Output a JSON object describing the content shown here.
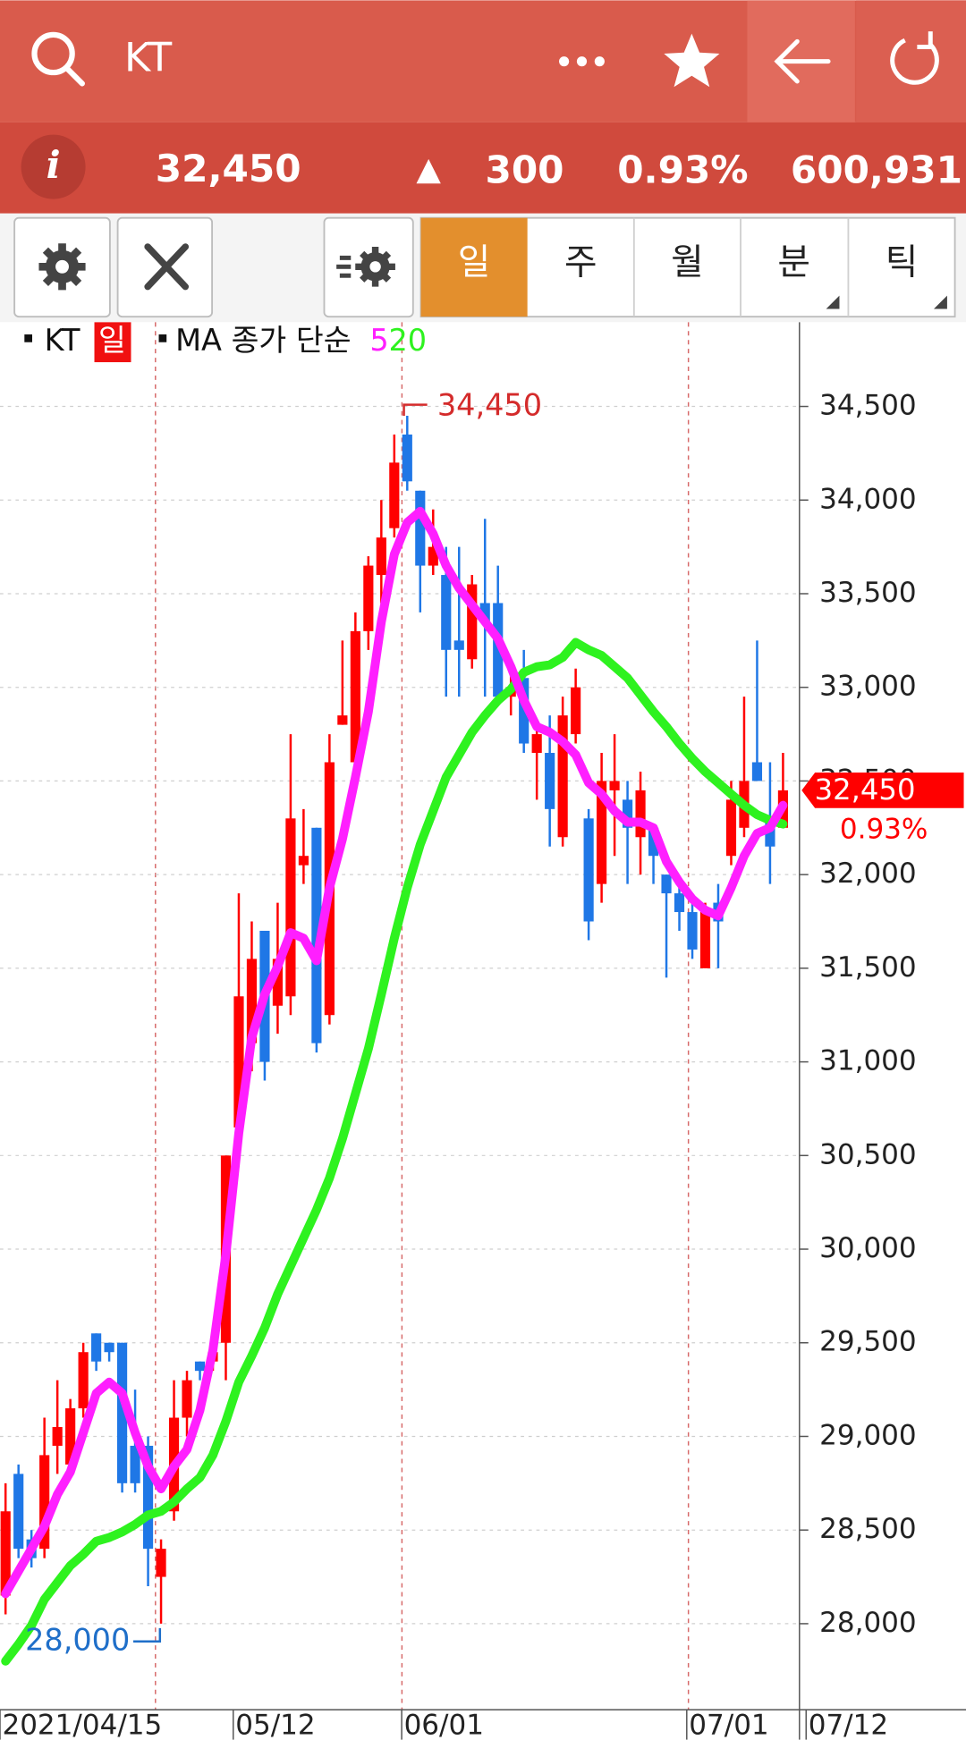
{
  "app_bar": {
    "title": "KT"
  },
  "quote": {
    "info": "i",
    "price": "32,450",
    "change": "300",
    "change_rate": "0.93%",
    "volume": "600,931"
  },
  "tabs": [
    "일",
    "주",
    "월",
    "분",
    "틱"
  ],
  "chart_data": {
    "type": "candlestick",
    "period": "일",
    "ma_label": "MA 종가 단순",
    "categories": [
      "2021/04/15",
      null,
      null,
      null,
      null,
      null,
      null,
      null,
      null,
      null,
      null,
      null,
      null,
      null,
      null,
      null,
      null,
      null,
      "05/12",
      null,
      null,
      null,
      null,
      null,
      null,
      null,
      null,
      null,
      null,
      null,
      null,
      "06/01",
      null,
      null,
      null,
      null,
      null,
      null,
      null,
      null,
      null,
      null,
      null,
      null,
      null,
      null,
      null,
      null,
      null,
      null,
      null,
      null,
      null,
      "07/01",
      null,
      null,
      null,
      null,
      null,
      null,
      "07/12"
    ],
    "series": [
      {
        "name": "KT",
        "up_color": "#ff0000",
        "down_color": "#1f77e6",
        "open": [
          28150,
          28800,
          28450,
          28400,
          28950,
          28850,
          29150,
          29550,
          29500,
          29500,
          28950,
          28950,
          28250,
          28600,
          29100,
          29400,
          29400,
          29500,
          30650,
          31100,
          31700,
          31300,
          31350,
          32050,
          32250,
          31250,
          32800,
          32600,
          33300,
          33600,
          33850,
          34350,
          34050,
          33650,
          33600,
          33250,
          33150,
          33450,
          33450,
          32950,
          33050,
          32650,
          32650,
          32200,
          32750,
          32300,
          31950,
          32450,
          32400,
          32200,
          32250,
          32000,
          31900,
          31800,
          31500,
          31850,
          32100,
          32250,
          32600,
          32300,
          32250
        ],
        "high": [
          28750,
          28850,
          28500,
          29100,
          29300,
          29200,
          29500,
          29550,
          29500,
          29500,
          29250,
          29000,
          28450,
          29300,
          29350,
          29400,
          29550,
          30500,
          31900,
          31750,
          31700,
          31850,
          32750,
          32350,
          32250,
          32750,
          33250,
          33400,
          33700,
          34000,
          34350,
          34450,
          34050,
          33950,
          33750,
          33750,
          33600,
          33900,
          33650,
          33150,
          33200,
          32800,
          32850,
          32950,
          33100,
          32350,
          32650,
          32750,
          32500,
          32550,
          32250,
          32000,
          31950,
          31850,
          31850,
          31950,
          32500,
          32950,
          33250,
          32600,
          32650
        ],
        "low": [
          28050,
          28350,
          28300,
          28350,
          28800,
          28800,
          29100,
          29350,
          29400,
          28700,
          28700,
          28200,
          28000,
          28550,
          29000,
          29300,
          29350,
          29300,
          30500,
          30950,
          30900,
          31150,
          31250,
          31950,
          31050,
          31200,
          32800,
          32600,
          33200,
          33450,
          33800,
          34050,
          33400,
          33600,
          32950,
          32950,
          33100,
          32950,
          32950,
          32850,
          32650,
          32400,
          32150,
          32150,
          32700,
          31650,
          31850,
          32100,
          31950,
          32000,
          31950,
          31450,
          31700,
          31550,
          31500,
          31500,
          32050,
          32200,
          32500,
          31950,
          32250
        ],
        "close": [
          28600,
          28400,
          28350,
          28900,
          29050,
          29150,
          29450,
          29400,
          29450,
          28750,
          28750,
          28400,
          28400,
          29100,
          29300,
          29350,
          29450,
          30500,
          31350,
          31550,
          31000,
          31550,
          32300,
          32100,
          31100,
          32600,
          32850,
          33300,
          33650,
          33800,
          34200,
          34100,
          33650,
          33750,
          33200,
          33200,
          33550,
          33350,
          32950,
          33000,
          32700,
          32750,
          32350,
          32850,
          33000,
          31750,
          32500,
          32500,
          32250,
          32450,
          32100,
          31900,
          31800,
          31600,
          31800,
          31750,
          32400,
          32500,
          32500,
          32150,
          32450
        ]
      },
      {
        "name": "5",
        "color": "#ff1fff",
        "values": [
          28160,
          28280,
          28400,
          28520,
          28690,
          28810,
          29020,
          29230,
          29290,
          29230,
          29020,
          28840,
          28720,
          28840,
          28930,
          29140,
          29460,
          29970,
          30620,
          31130,
          31360,
          31510,
          31690,
          31660,
          31540,
          31930,
          32190,
          32520,
          32870,
          33350,
          33710,
          33880,
          33940,
          33820,
          33650,
          33530,
          33440,
          33350,
          33260,
          33110,
          32930,
          32790,
          32760,
          32710,
          32640,
          32490,
          32430,
          32340,
          32280,
          32280,
          32250,
          32070,
          31960,
          31870,
          31810,
          31780,
          31930,
          32100,
          32220,
          32250,
          32370
        ]
      },
      {
        "name": "20",
        "color": "#2ef21f",
        "values": [
          27800,
          27890,
          27990,
          28130,
          28220,
          28310,
          28370,
          28440,
          28460,
          28490,
          28530,
          28580,
          28600,
          28650,
          28720,
          28780,
          28900,
          29080,
          29290,
          29430,
          29580,
          29760,
          29910,
          30060,
          30210,
          30380,
          30590,
          30830,
          31070,
          31360,
          31660,
          31930,
          32160,
          32340,
          32520,
          32640,
          32760,
          32850,
          32930,
          32990,
          33080,
          33110,
          33120,
          33160,
          33240,
          33200,
          33170,
          33110,
          33050,
          32960,
          32870,
          32790,
          32700,
          32620,
          32550,
          32490,
          32430,
          32370,
          32320,
          32290,
          32270
        ]
      }
    ],
    "ylim": [
      27600,
      34920
    ],
    "yticks": [
      {
        "value": 28000,
        "label": "28,000"
      },
      {
        "value": 28500,
        "label": "28,500"
      },
      {
        "value": 29000,
        "label": "29,000"
      },
      {
        "value": 29500,
        "label": "29,500"
      },
      {
        "value": 30000,
        "label": "30,000"
      },
      {
        "value": 30500,
        "label": "30,500"
      },
      {
        "value": 31000,
        "label": "31,000"
      },
      {
        "value": 31500,
        "label": "31,500"
      },
      {
        "value": 32000,
        "label": "32,000"
      },
      {
        "value": 32500,
        "label": "32,500"
      },
      {
        "value": 33000,
        "label": "33,000"
      },
      {
        "value": 33500,
        "label": "33,500"
      },
      {
        "value": 34000,
        "label": "34,000"
      },
      {
        "value": 34500,
        "label": "34,500"
      }
    ],
    "grid": true,
    "annotations": [
      {
        "value": 34450,
        "label": "34,450",
        "color": "#d42b2b"
      },
      {
        "value": 28000,
        "label": "28,000",
        "color": "#1f6fc9"
      }
    ],
    "last_price": {
      "value": 32450,
      "label": "32,450",
      "color": "#ff0000"
    },
    "last_change": "0.93%"
  }
}
